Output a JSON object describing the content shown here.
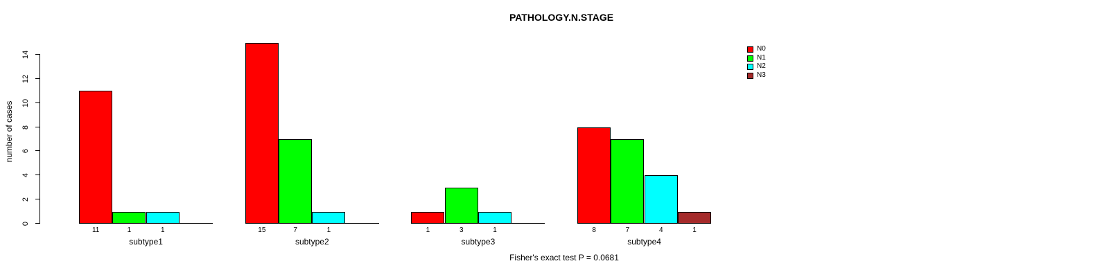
{
  "chart_data": {
    "type": "bar",
    "title": "PATHOLOGY.N.STAGE",
    "ylabel": "number of cases",
    "xlabel": "",
    "ylim": [
      0,
      15
    ],
    "yticks": [
      0,
      2,
      4,
      6,
      8,
      10,
      12,
      14
    ],
    "grid": false,
    "legend_position": "top-right-inside",
    "bar_value_labels_shown": true,
    "categories": [
      "subtype1",
      "subtype2",
      "subtype3",
      "subtype4"
    ],
    "series": [
      {
        "name": "N0",
        "color": "#FF0000",
        "values": [
          11,
          15,
          1,
          8
        ]
      },
      {
        "name": "N1",
        "color": "#00FF00",
        "values": [
          1,
          7,
          3,
          7
        ]
      },
      {
        "name": "N2",
        "color": "#00FFFF",
        "values": [
          1,
          1,
          1,
          4
        ]
      },
      {
        "name": "N3",
        "color": "#A52A2A",
        "values": [
          0,
          0,
          0,
          1
        ]
      }
    ],
    "annotation": "Fisher's exact test P = 0.0681"
  },
  "colors": {
    "background": "#FFFFFF",
    "axis": "#000000",
    "text": "#000000"
  }
}
